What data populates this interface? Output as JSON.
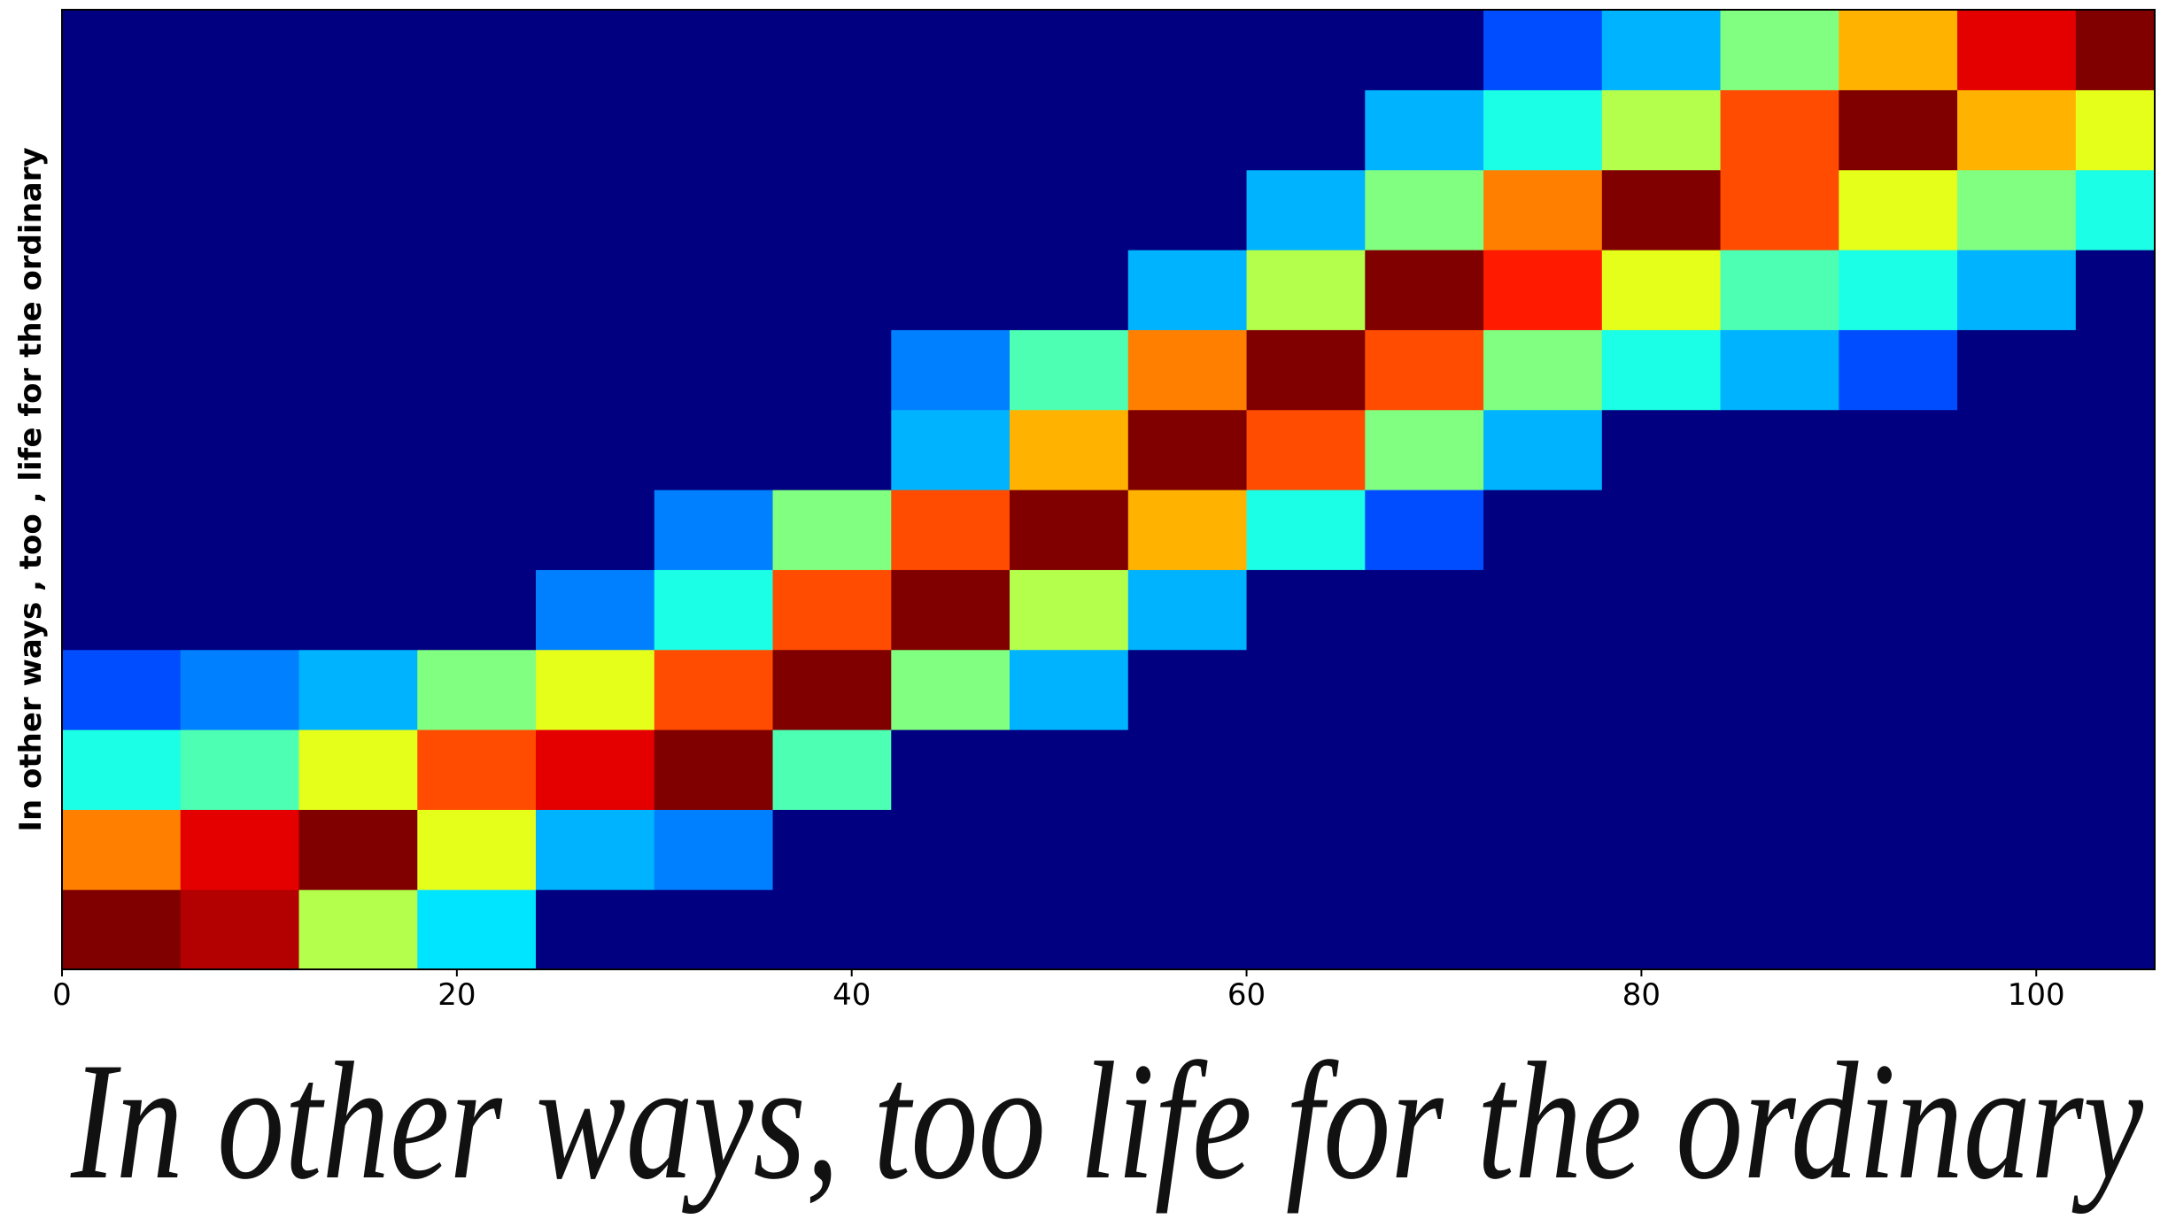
{
  "chart_data": {
    "type": "heatmap",
    "ylabel": "In other ways , too , life for the ordinary",
    "handwriting": "In other ways, too life for the ordinary",
    "colormap": "jet",
    "vlim": [
      0,
      1
    ],
    "xlim": [
      0,
      106
    ],
    "xticks": [
      0,
      20,
      40,
      60,
      80,
      100
    ],
    "xbins": [
      0,
      6,
      12,
      18,
      24,
      30,
      36,
      42,
      48,
      54,
      60,
      66,
      72,
      78,
      84,
      90,
      96,
      102,
      106
    ],
    "z": [
      [
        1,
        0.95,
        0.55,
        0.35,
        0,
        0,
        0,
        0,
        0,
        0,
        0,
        0,
        0,
        0,
        0,
        0,
        0,
        0
      ],
      [
        0.75,
        0.9,
        1,
        0.6,
        0.3,
        0.25,
        0,
        0,
        0,
        0,
        0,
        0,
        0,
        0,
        0,
        0,
        0,
        0
      ],
      [
        0.4,
        0.45,
        0.6,
        0.8,
        0.9,
        1,
        0.45,
        0,
        0,
        0,
        0,
        0,
        0,
        0,
        0,
        0,
        0,
        0
      ],
      [
        0.2,
        0.25,
        0.3,
        0.5,
        0.6,
        0.8,
        1,
        0.5,
        0.3,
        0,
        0,
        0,
        0,
        0,
        0,
        0,
        0,
        0
      ],
      [
        0,
        0,
        0,
        0,
        0.25,
        0.4,
        0.8,
        1,
        0.55,
        0.3,
        0,
        0,
        0,
        0,
        0,
        0,
        0,
        0
      ],
      [
        0,
        0,
        0,
        0,
        0,
        0.25,
        0.5,
        0.8,
        1,
        0.7,
        0.4,
        0.2,
        0,
        0,
        0,
        0,
        0,
        0
      ],
      [
        0,
        0,
        0,
        0,
        0,
        0,
        0,
        0.3,
        0.7,
        1,
        0.8,
        0.5,
        0.3,
        0,
        0,
        0,
        0,
        0
      ],
      [
        0,
        0,
        0,
        0,
        0,
        0,
        0,
        0.25,
        0.45,
        0.75,
        1,
        0.8,
        0.5,
        0.4,
        0.3,
        0.2,
        0,
        0
      ],
      [
        0,
        0,
        0,
        0,
        0,
        0,
        0,
        0,
        0,
        0.3,
        0.55,
        1,
        0.85,
        0.6,
        0.45,
        0.4,
        0.3,
        0
      ],
      [
        0,
        0,
        0,
        0,
        0,
        0,
        0,
        0,
        0,
        0,
        0.3,
        0.5,
        0.75,
        1,
        0.8,
        0.6,
        0.5,
        0.4
      ],
      [
        0,
        0,
        0,
        0,
        0,
        0,
        0,
        0,
        0,
        0,
        0,
        0.3,
        0.4,
        0.55,
        0.8,
        1,
        0.7,
        0.6
      ],
      [
        0,
        0,
        0,
        0,
        0,
        0,
        0,
        0,
        0,
        0,
        0,
        0,
        0.2,
        0.3,
        0.5,
        0.7,
        0.9,
        1
      ]
    ]
  }
}
